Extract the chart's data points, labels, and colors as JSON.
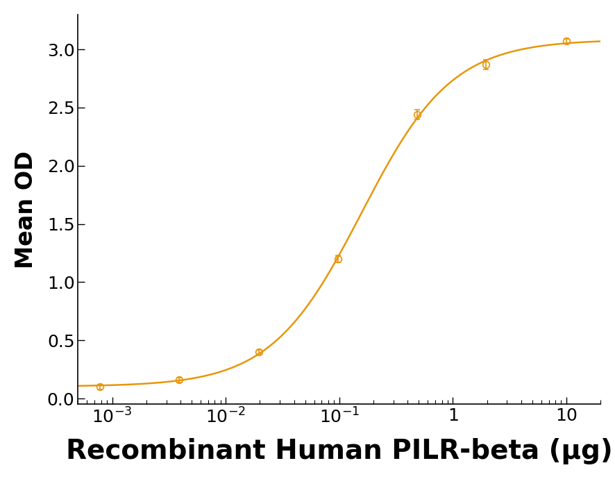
{
  "x_data": [
    0.00078125,
    0.00390625,
    0.01953125,
    0.09765625,
    0.48828125,
    1.953125,
    10.0
  ],
  "y_data": [
    0.1,
    0.16,
    0.4,
    1.2,
    2.44,
    2.87,
    3.07
  ],
  "y_err": [
    0.02,
    0.02,
    0.02,
    0.03,
    0.04,
    0.04,
    0.02
  ],
  "color": "#E8960A",
  "marker": "o",
  "marker_facecolor": "none",
  "marker_edgecolor": "#E8960A",
  "marker_size": 7,
  "marker_linewidth": 1.2,
  "line_width": 1.8,
  "xlabel": "Recombinant Human PILR-beta (μg)",
  "ylabel": "Mean OD",
  "xlabel_fontsize": 28,
  "ylabel_fontsize": 24,
  "xlabel_fontweight": "bold",
  "ylabel_fontweight": "bold",
  "tick_fontsize": 18,
  "xlim_low": 0.0005,
  "xlim_high": 20,
  "ylim_low": -0.05,
  "ylim_high": 3.3,
  "yticks": [
    0.0,
    0.5,
    1.0,
    1.5,
    2.0,
    2.5,
    3.0
  ],
  "background_color": "#ffffff"
}
